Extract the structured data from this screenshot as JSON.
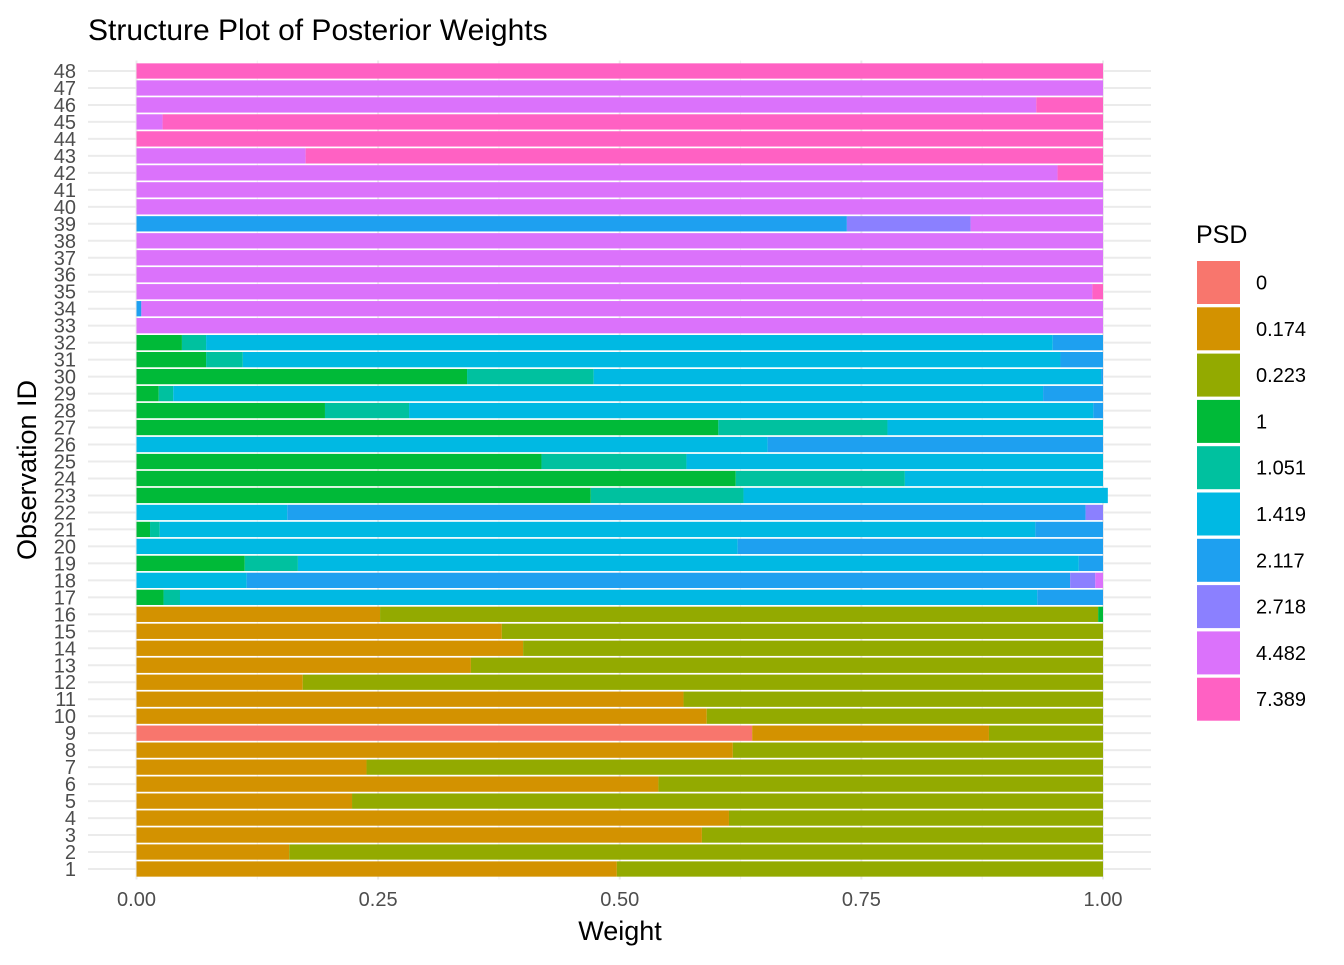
{
  "chart_data": {
    "type": "bar",
    "orientation": "horizontal",
    "stacked": true,
    "title": "Structure Plot of Posterior Weights",
    "xlabel": "Weight",
    "ylabel": "Observation ID",
    "xlim": [
      0,
      1
    ],
    "xticks": [
      0,
      0.25,
      0.5,
      0.75,
      1
    ],
    "xtick_labels": [
      "0.00",
      "0.25",
      "0.50",
      "0.75",
      "1.00"
    ],
    "grid": true,
    "legend": {
      "title": "PSD",
      "placement": "right",
      "entries": [
        "0",
        "0.174",
        "0.223",
        "1",
        "1.051",
        "1.419",
        "2.117",
        "2.718",
        "4.482",
        "7.389"
      ],
      "colors": [
        "#F8766D",
        "#D39200",
        "#93AA00",
        "#00BA38",
        "#00C19F",
        "#00B9E3",
        "#1EA0F0",
        "#8B80FF",
        "#DB72FB",
        "#FF61C3"
      ]
    },
    "categories": [
      "1",
      "2",
      "3",
      "4",
      "5",
      "6",
      "7",
      "8",
      "9",
      "10",
      "11",
      "12",
      "13",
      "14",
      "15",
      "16",
      "17",
      "18",
      "19",
      "20",
      "21",
      "22",
      "23",
      "24",
      "25",
      "26",
      "27",
      "28",
      "29",
      "30",
      "31",
      "32",
      "33",
      "34",
      "35",
      "36",
      "37",
      "38",
      "39",
      "40",
      "41",
      "42",
      "43",
      "44",
      "45",
      "46",
      "47",
      "48"
    ],
    "series": [
      {
        "name": "0",
        "values": [
          0,
          0,
          0,
          0,
          0,
          0,
          0,
          0,
          0.637,
          0,
          0,
          0,
          0,
          0,
          0,
          0,
          0,
          0,
          0,
          0,
          0,
          0,
          0,
          0,
          0,
          0,
          0,
          0,
          0,
          0,
          0,
          0,
          0,
          0,
          0,
          0,
          0,
          0,
          0,
          0,
          0,
          0,
          0,
          0,
          0,
          0,
          0,
          0
        ]
      },
      {
        "name": "0.174",
        "values": [
          0.497,
          0.158,
          0.585,
          0.613,
          0.223,
          0.54,
          0.238,
          0.617,
          0.245,
          0.59,
          0.566,
          0.172,
          0.346,
          0.4,
          0.378,
          0.252,
          0,
          0,
          0,
          0,
          0,
          0,
          0,
          0,
          0,
          0,
          0,
          0,
          0,
          0,
          0,
          0,
          0,
          0,
          0,
          0,
          0,
          0,
          0,
          0,
          0,
          0,
          0,
          0,
          0,
          0,
          0,
          0
        ]
      },
      {
        "name": "0.223",
        "values": [
          0.503,
          0.842,
          0.415,
          0.387,
          0.777,
          0.46,
          0.762,
          0.383,
          0.118,
          0.41,
          0.434,
          0.828,
          0.654,
          0.6,
          0.622,
          0.743,
          0,
          0,
          0,
          0,
          0,
          0,
          0,
          0,
          0,
          0,
          0,
          0,
          0,
          0,
          0,
          0,
          0,
          0,
          0,
          0,
          0,
          0,
          0,
          0,
          0,
          0,
          0,
          0,
          0,
          0,
          0,
          0
        ]
      },
      {
        "name": "1",
        "values": [
          0,
          0,
          0,
          0,
          0,
          0,
          0,
          0,
          0,
          0,
          0,
          0,
          0,
          0,
          0,
          0.005,
          0.028,
          0,
          0.112,
          0,
          0.014,
          0,
          0.47,
          0.62,
          0.419,
          0,
          0.602,
          0.195,
          0.023,
          0.342,
          0.072,
          0.047,
          0,
          0,
          0,
          0,
          0,
          0,
          0,
          0,
          0,
          0,
          0,
          0,
          0,
          0,
          0,
          0
        ]
      },
      {
        "name": "1.051",
        "values": [
          0,
          0,
          0,
          0,
          0,
          0,
          0,
          0,
          0,
          0,
          0,
          0,
          0,
          0,
          0,
          0,
          0.017,
          0,
          0.055,
          0,
          0.01,
          0,
          0.158,
          0.175,
          0.15,
          0,
          0.175,
          0.087,
          0.015,
          0.131,
          0.038,
          0.025,
          0,
          0,
          0,
          0,
          0,
          0,
          0,
          0,
          0,
          0,
          0,
          0,
          0,
          0,
          0,
          0
        ]
      },
      {
        "name": "1.419",
        "values": [
          0,
          0,
          0,
          0,
          0,
          0,
          0,
          0,
          0,
          0,
          0,
          0,
          0,
          0,
          0,
          0,
          0.887,
          0.114,
          0.808,
          0.622,
          0.906,
          0.156,
          0.377,
          0.205,
          0.431,
          0.653,
          0.223,
          0.708,
          0.9,
          0.525,
          0.846,
          0.876,
          0,
          0,
          0,
          0,
          0,
          0,
          0,
          0,
          0,
          0,
          0,
          0,
          0,
          0,
          0,
          0
        ]
      },
      {
        "name": "2.117",
        "values": [
          0,
          0,
          0,
          0,
          0,
          0,
          0,
          0,
          0,
          0,
          0,
          0,
          0,
          0,
          0,
          0,
          0.068,
          0.852,
          0.025,
          0.378,
          0.07,
          0.826,
          0,
          0,
          0,
          0.347,
          0,
          0.01,
          0.062,
          0.002,
          0.044,
          0.052,
          0,
          0.005,
          0,
          0,
          0,
          0,
          0.735,
          0,
          0,
          0,
          0,
          0,
          0,
          0,
          0,
          0
        ]
      },
      {
        "name": "2.718",
        "values": [
          0,
          0,
          0,
          0,
          0,
          0,
          0,
          0,
          0,
          0,
          0,
          0,
          0,
          0,
          0,
          0,
          0,
          0.026,
          0,
          0,
          0,
          0.018,
          0,
          0,
          0,
          0,
          0,
          0,
          0,
          0,
          0,
          0,
          0,
          0,
          0,
          0,
          0,
          0,
          0.128,
          0,
          0,
          0,
          0,
          0,
          0,
          0,
          0,
          0
        ]
      },
      {
        "name": "4.482",
        "values": [
          0,
          0,
          0,
          0,
          0,
          0,
          0,
          0,
          0,
          0,
          0,
          0,
          0,
          0,
          0,
          0,
          0,
          0.008,
          0,
          0,
          0,
          0,
          0,
          0,
          0,
          0,
          0,
          0,
          0,
          0,
          0,
          0,
          1,
          0.995,
          0.989,
          1,
          1,
          1,
          0.137,
          1,
          1,
          0.953,
          0.175,
          0,
          0.027,
          0.931,
          1,
          0
        ]
      },
      {
        "name": "7.389",
        "values": [
          0,
          0,
          0,
          0,
          0,
          0,
          0,
          0,
          0,
          0,
          0,
          0,
          0,
          0,
          0,
          0,
          0,
          0,
          0,
          0,
          0,
          0,
          0,
          0,
          0,
          0,
          0,
          0,
          0,
          0,
          0,
          0,
          0,
          0,
          0.011,
          0,
          0,
          0,
          0,
          0,
          0,
          0.047,
          0.825,
          1,
          0.973,
          0.069,
          0,
          1
        ]
      }
    ]
  }
}
